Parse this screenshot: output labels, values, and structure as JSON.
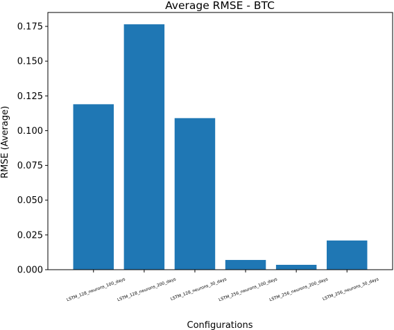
{
  "chart_data": {
    "type": "bar",
    "title": "Average RMSE - BTC",
    "xlabel": "Configurations",
    "ylabel": "RMSE (Average)",
    "categories": [
      "LSTM_128_neurons_100_days",
      "LSTM_128_neurons_200_days",
      "LSTM_128_neurons_30_days",
      "LSTM_256_neurons_100_days",
      "LSTM_256_neurons_200_days",
      "LSTM_256_neurons_30_days"
    ],
    "values": [
      0.119,
      0.1765,
      0.109,
      0.007,
      0.0035,
      0.021
    ],
    "ylim": [
      0,
      0.185
    ],
    "yticks": [
      0.0,
      0.025,
      0.05,
      0.075,
      0.1,
      0.125,
      0.15,
      0.175
    ],
    "ytick_labels": [
      "0.000",
      "0.025",
      "0.050",
      "0.075",
      "0.100",
      "0.125",
      "0.150",
      "0.175"
    ],
    "grid": false,
    "bar_color": "#1f77b4"
  }
}
